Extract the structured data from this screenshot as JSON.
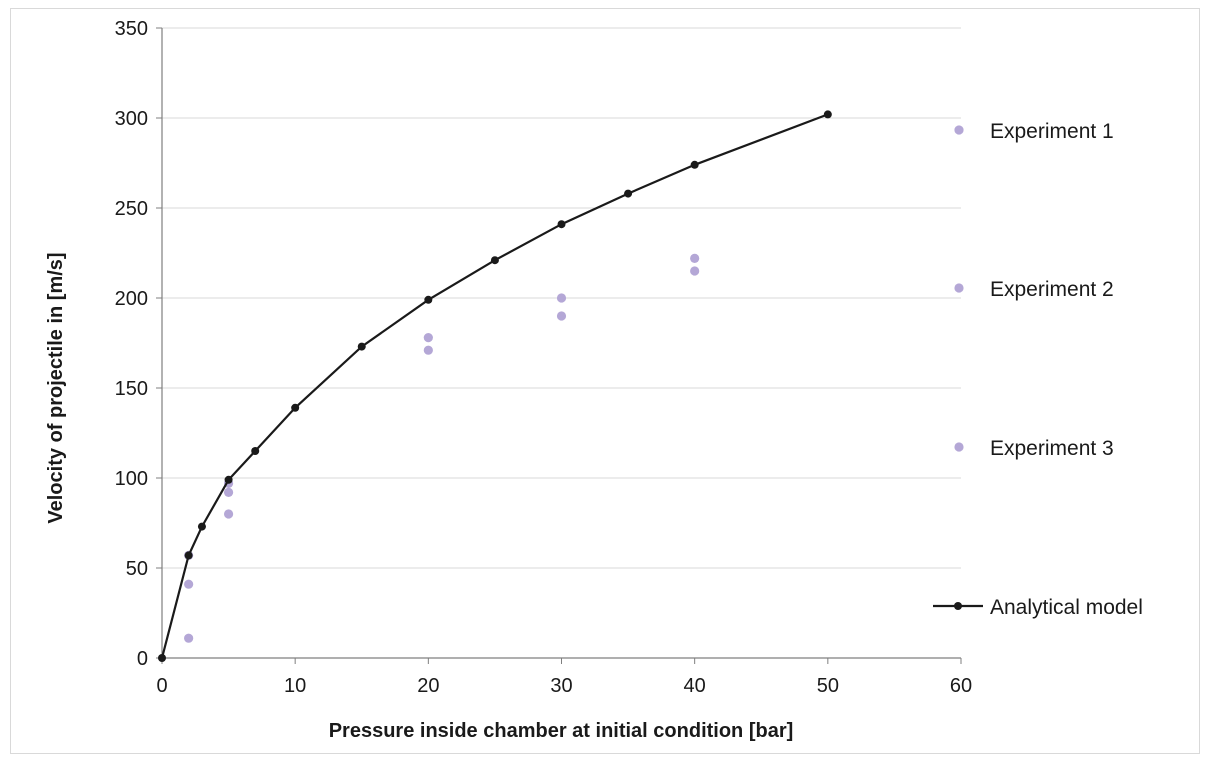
{
  "chart_data": {
    "type": "scatter",
    "xlabel": "Pressure inside chamber at initial  condition [bar]",
    "ylabel": "Velocity of projectile in [m/s]",
    "xlim": [
      0,
      60
    ],
    "ylim": [
      0,
      350
    ],
    "x_ticks": [
      0,
      10,
      20,
      30,
      40,
      50,
      60
    ],
    "y_ticks": [
      0,
      50,
      100,
      150,
      200,
      250,
      300,
      350
    ],
    "grid": "horizontal",
    "legend_position": "right",
    "series": [
      {
        "name": "Experiment 1",
        "kind": "scatter",
        "color": "#b4a7d6",
        "points": [
          [
            2,
            57
          ],
          [
            5,
            97
          ],
          [
            20,
            178
          ],
          [
            30,
            200
          ],
          [
            40,
            222
          ]
        ]
      },
      {
        "name": "Experiment 2",
        "kind": "scatter",
        "color": "#b4a7d6",
        "points": [
          [
            2,
            41
          ],
          [
            5,
            92
          ],
          [
            20,
            171
          ],
          [
            30,
            190
          ],
          [
            40,
            215
          ]
        ]
      },
      {
        "name": "Experiment 3",
        "kind": "scatter",
        "color": "#b4a7d6",
        "points": [
          [
            2,
            11
          ],
          [
            5,
            80
          ]
        ]
      },
      {
        "name": "Analytical model",
        "kind": "line",
        "color": "#1a1a1a",
        "points": [
          [
            0,
            0
          ],
          [
            2,
            57
          ],
          [
            3,
            73
          ],
          [
            5,
            99
          ],
          [
            7,
            115
          ],
          [
            10,
            139
          ],
          [
            15,
            173
          ],
          [
            20,
            199
          ],
          [
            25,
            221
          ],
          [
            30,
            241
          ],
          [
            35,
            258
          ],
          [
            40,
            274
          ],
          [
            50,
            302
          ]
        ]
      }
    ]
  }
}
